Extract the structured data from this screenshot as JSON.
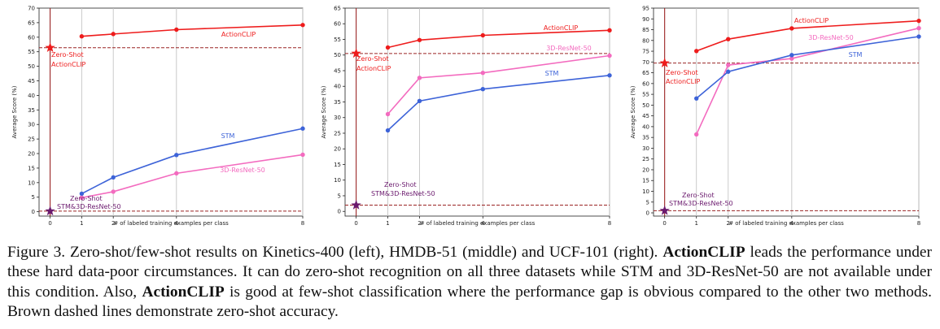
{
  "colors": {
    "actionclip": "#ee1c1c",
    "stm": "#3d63d8",
    "resnet": "#f36bbf",
    "zeroshot_star_actionclip": "#ee1c1c",
    "zeroshot_star_baselines": "#6b1a6e",
    "zeroshot_line": "#9a2424",
    "label_baselines": "#6b1a6e"
  },
  "chart_data": [
    {
      "type": "line",
      "name": "kinetics-400",
      "xlabel": "# of labeled training examples per class",
      "ylabel": "Average Score (%)",
      "x_ticks": [
        0,
        1,
        2,
        4,
        8
      ],
      "y_ticks": [
        0,
        5,
        10,
        15,
        20,
        25,
        30,
        35,
        40,
        45,
        50,
        55,
        60,
        65,
        70
      ],
      "ylim": [
        -1.5,
        70
      ],
      "series": [
        {
          "name": "ActionCLIP",
          "x": [
            1,
            2,
            4,
            8
          ],
          "values": [
            60.3,
            61.1,
            62.6,
            64.2
          ],
          "label": "ActionCLIP"
        },
        {
          "name": "STM",
          "x": [
            1,
            2,
            4,
            8
          ],
          "values": [
            6.2,
            11.8,
            19.5,
            28.6
          ],
          "label": "STM"
        },
        {
          "name": "3D-ResNet-50",
          "x": [
            1,
            2,
            4,
            8
          ],
          "values": [
            4.8,
            6.9,
            13.2,
            19.6
          ],
          "label": "3D-ResNet-50"
        }
      ],
      "zero_shot": [
        {
          "name": "ActionCLIP",
          "x": 0,
          "value": 56.4,
          "label_line1": "Zero-Shot",
          "label_line2": "ActionCLIP"
        },
        {
          "name": "STM&3D-ResNet-50",
          "x": 0,
          "value": 0.2,
          "label_line1": "Zero-Shot",
          "label_line2": "STM&3D-ResNet-50"
        }
      ]
    },
    {
      "type": "line",
      "name": "hmdb-51",
      "xlabel": "# of labeled training examples per class",
      "ylabel": "Average Score (%)",
      "x_ticks": [
        0,
        1,
        2,
        4,
        8
      ],
      "y_ticks": [
        0,
        5,
        10,
        15,
        20,
        25,
        30,
        35,
        40,
        45,
        50,
        55,
        60,
        65
      ],
      "ylim": [
        -1.5,
        65
      ],
      "series": [
        {
          "name": "ActionCLIP",
          "x": [
            1,
            2,
            4,
            8
          ],
          "values": [
            52.4,
            54.8,
            56.3,
            57.9
          ],
          "label": "ActionCLIP"
        },
        {
          "name": "3D-ResNet-50",
          "x": [
            1,
            2,
            4,
            8
          ],
          "values": [
            31.1,
            42.7,
            44.3,
            49.8
          ],
          "label": "3D-ResNet-50"
        },
        {
          "name": "STM",
          "x": [
            1,
            2,
            4,
            8
          ],
          "values": [
            25.9,
            35.3,
            39.1,
            43.5
          ],
          "label": "STM"
        }
      ],
      "zero_shot": [
        {
          "name": "ActionCLIP",
          "x": 0,
          "value": 50.5,
          "label_line1": "Zero-Shot",
          "label_line2": "ActionCLIP"
        },
        {
          "name": "STM&3D-ResNet-50",
          "x": 0,
          "value": 2.0,
          "label_line1": "Zero-Shot",
          "label_line2": "STM&3D-ResNet-50"
        }
      ]
    },
    {
      "type": "line",
      "name": "ucf-101",
      "xlabel": "# of labeled training examples per class",
      "ylabel": "Average Score (%)",
      "x_ticks": [
        0,
        1,
        2,
        4,
        8
      ],
      "y_ticks": [
        0,
        5,
        10,
        15,
        20,
        25,
        30,
        35,
        40,
        45,
        50,
        55,
        60,
        65,
        70,
        75,
        80,
        85,
        90,
        95
      ],
      "ylim": [
        -1.5,
        95
      ],
      "series": [
        {
          "name": "ActionCLIP",
          "x": [
            1,
            2,
            4,
            8
          ],
          "values": [
            75.1,
            80.6,
            85.6,
            89.1
          ],
          "label": "ActionCLIP"
        },
        {
          "name": "3D-ResNet-50",
          "x": [
            1,
            2,
            4,
            8
          ],
          "values": [
            36.4,
            68.6,
            71.6,
            85.7
          ],
          "label": "3D-ResNet-50"
        },
        {
          "name": "STM",
          "x": [
            1,
            2,
            4,
            8
          ],
          "values": [
            53.1,
            65.5,
            73.2,
            81.8
          ],
          "label": "STM"
        }
      ],
      "zero_shot": [
        {
          "name": "ActionCLIP",
          "x": 0,
          "value": 69.5,
          "label_line1": "Zero-Shot",
          "label_line2": "ActionCLIP"
        },
        {
          "name": "STM&3D-ResNet-50",
          "x": 0,
          "value": 1.0,
          "label_line1": "Zero-Shot",
          "label_line2": "STM&3D-ResNet-50"
        }
      ]
    }
  ],
  "caption": {
    "prefix": "Figure 3. Zero-shot/few-shot results on Kinetics-400 (left), HMDB-51 (middle) and UCF-101 (right). ",
    "bold1": "ActionCLIP",
    "mid": " leads the performance under these hard data-poor circumstances.  It can do zero-shot recognition on all three datasets while STM and 3D-ResNet-50 are not available under this condition. Also, ",
    "bold2": "ActionCLIP",
    "suffix": " is good at few-shot classification where the performance gap is obvious compared to the other two methods. Brown dashed lines demonstrate zero-shot accuracy."
  }
}
